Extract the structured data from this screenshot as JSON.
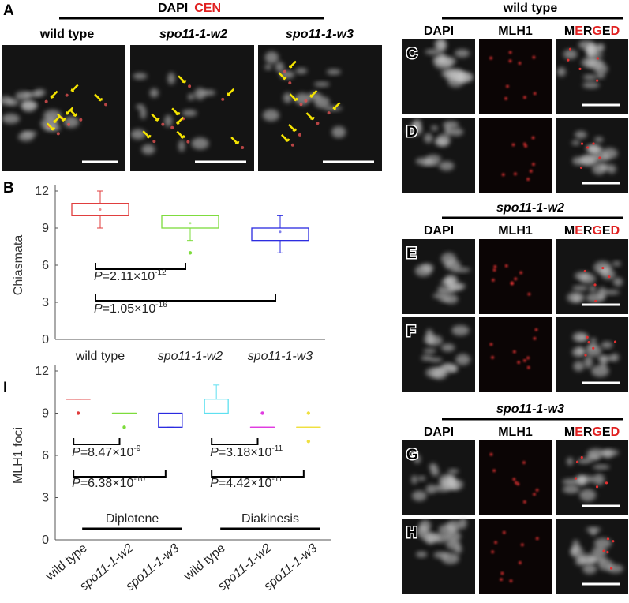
{
  "panel_a": {
    "label": "A",
    "header": [
      "DAPI",
      "CEN"
    ],
    "columns": [
      "wild type",
      "spo11-1-w2",
      "spo11-1-w3"
    ]
  },
  "panel_right": {
    "labels": [
      "C",
      "D",
      "E",
      "F",
      "G",
      "H"
    ],
    "groups": [
      {
        "title": "wild type",
        "columns": [
          "DAPI",
          "MLH1"
        ],
        "merged": [
          "M",
          "E",
          "R",
          "G",
          "E",
          "D"
        ]
      },
      {
        "title": "spo11-1-w2",
        "columns": [
          "DAPI",
          "MLH1"
        ],
        "merged": [
          "M",
          "E",
          "R",
          "G",
          "E",
          "D"
        ]
      },
      {
        "title": "spo11-1-w3",
        "columns": [
          "DAPI",
          "MLH1"
        ],
        "merged": [
          "M",
          "E",
          "R",
          "G",
          "E",
          "D"
        ]
      }
    ]
  },
  "chart_data": [
    {
      "type": "box",
      "label": "B",
      "y_label": "Chiasmata",
      "categories": [
        "wild type",
        "spo11-1-w2",
        "spo11-1-w3"
      ],
      "ylim": [
        0,
        12
      ],
      "yticks": [
        0,
        3,
        6,
        9,
        12
      ],
      "boxes": [
        {
          "color": "#e03c3c",
          "min": 9,
          "q1": 10,
          "q3": 11,
          "max": 12,
          "mean": 10.5,
          "outliers": []
        },
        {
          "color": "#7ddc3c",
          "min": 8,
          "q1": 9,
          "q3": 10,
          "max": 10,
          "mean": 9.4,
          "outliers": [
            7
          ]
        },
        {
          "color": "#2a2ae0",
          "min": 7,
          "q1": 8,
          "q3": 9,
          "max": 10,
          "mean": 8.7,
          "outliers": []
        }
      ],
      "annotations": [
        {
          "prefix": "P",
          "text": "=2.11×10",
          "exponent": "-12"
        },
        {
          "prefix": "P",
          "text": "=1.05×10",
          "exponent": "-16"
        }
      ]
    },
    {
      "type": "box",
      "label": "I",
      "y_label": "MLH1  foci",
      "categories": [
        "wild type",
        "spo11-1-w2",
        "spo11-1-w3",
        "wild type",
        "spo11-1-w2",
        "spo11-1-w3"
      ],
      "ylim": [
        0,
        12
      ],
      "yticks": [
        0,
        3,
        6,
        9,
        12
      ],
      "boxes": [
        {
          "color": "#e03c3c",
          "min": 10,
          "q1": 10,
          "q3": 10,
          "max": 10,
          "outliers": [
            9
          ]
        },
        {
          "color": "#7ddc3c",
          "min": 9,
          "q1": 9,
          "q3": 9,
          "max": 9,
          "outliers": [
            8
          ]
        },
        {
          "color": "#2a2ae0",
          "min": 8,
          "q1": 8,
          "q3": 9,
          "max": 9,
          "outliers": []
        },
        {
          "color": "#5ee0f0",
          "min": 9,
          "q1": 9,
          "q3": 10,
          "max": 11,
          "outliers": []
        },
        {
          "color": "#e03ce0",
          "min": 8,
          "q1": 8,
          "q3": 8,
          "max": 8,
          "outliers": [
            9
          ]
        },
        {
          "color": "#f0e040",
          "min": 8,
          "q1": 8,
          "q3": 8,
          "max": 8,
          "outliers": [
            9,
            7
          ]
        }
      ],
      "groups": [
        "Diplotene",
        "Diakinesis"
      ],
      "annotations": [
        {
          "prefix": "P",
          "text": "=8.47×10",
          "exponent": "-9"
        },
        {
          "prefix": "P",
          "text": "=6.38×10",
          "exponent": "-10"
        },
        {
          "prefix": "P",
          "text": "=3.18×10",
          "exponent": "-11"
        },
        {
          "prefix": "P",
          "text": "=4.42×10",
          "exponent": "-11"
        }
      ]
    }
  ]
}
